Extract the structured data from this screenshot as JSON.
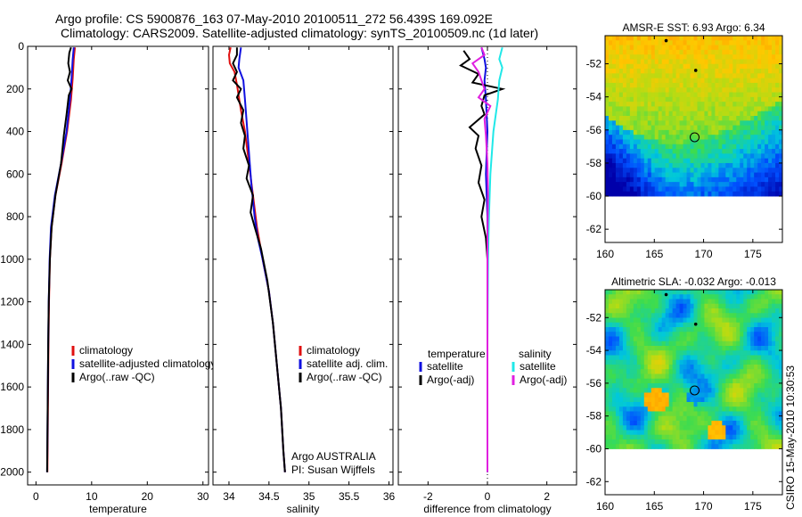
{
  "header": {
    "line1": "Argo profile: CS 5900876_163 07-May-2010 20100511_272 56.439S 169.092E",
    "line2": "Climatology: CARS2009. Satellite-adjusted climatology: synTS_20100509.nc (1d later)"
  },
  "side_label": "CSIRO 15-May-2010 10:30:53",
  "colors": {
    "red": "#e01010",
    "blue": "#1010e0",
    "black": "#000000",
    "cyan": "#20e8e8",
    "magenta": "#e020e0"
  },
  "chart_data": [
    {
      "id": "temperature",
      "type": "line",
      "xlabel": "temperature",
      "xlim": [
        -1.5,
        31
      ],
      "xticks": [
        0,
        10,
        20,
        30
      ],
      "ylim": [
        2060,
        0
      ],
      "yticks": [
        0,
        200,
        400,
        600,
        800,
        1000,
        1200,
        1400,
        1600,
        1800,
        2000
      ],
      "legend": [
        "climatology",
        "satellite-adjusted climatology",
        "Argo(..raw -QC)"
      ],
      "legend_placement": "lower-left",
      "series": [
        {
          "name": "climatology",
          "color": "red",
          "points": [
            [
              7,
              5
            ],
            [
              6.8,
              60
            ],
            [
              6.6,
              150
            ],
            [
              6.3,
              250
            ],
            [
              5.6,
              400
            ],
            [
              4.6,
              550
            ],
            [
              3.5,
              700
            ],
            [
              2.8,
              850
            ],
            [
              2.5,
              1000
            ],
            [
              2.35,
              1200
            ],
            [
              2.25,
              1400
            ],
            [
              2.15,
              1700
            ],
            [
              2.05,
              2000
            ]
          ]
        },
        {
          "name": "satellite-adjusted climatology",
          "color": "blue",
          "points": [
            [
              6.8,
              5
            ],
            [
              6.6,
              60
            ],
            [
              6.4,
              150
            ],
            [
              6.1,
              250
            ],
            [
              5.5,
              400
            ],
            [
              4.5,
              550
            ],
            [
              3.4,
              700
            ],
            [
              2.7,
              850
            ],
            [
              2.45,
              1000
            ],
            [
              2.3,
              1200
            ],
            [
              2.2,
              1400
            ],
            [
              2.1,
              1700
            ],
            [
              2.0,
              2000
            ]
          ]
        },
        {
          "name": "Argo(..raw -QC)",
          "color": "black",
          "points": [
            [
              6.3,
              5
            ],
            [
              6.0,
              30
            ],
            [
              5.8,
              80
            ],
            [
              6.1,
              120
            ],
            [
              5.7,
              160
            ],
            [
              6.4,
              200
            ],
            [
              5.9,
              230
            ],
            [
              5.5,
              320
            ],
            [
              5.0,
              420
            ],
            [
              4.5,
              550
            ],
            [
              3.5,
              700
            ],
            [
              2.8,
              850
            ],
            [
              2.5,
              1000
            ],
            [
              2.3,
              1200
            ],
            [
              2.2,
              1400
            ],
            [
              2.1,
              1700
            ],
            [
              2.0,
              2000
            ]
          ]
        }
      ]
    },
    {
      "id": "salinity",
      "type": "line",
      "xlabel": "salinity",
      "xlim": [
        33.8,
        36.05
      ],
      "xticks": [
        34,
        34.5,
        35,
        35.5,
        36
      ],
      "ylim": [
        2060,
        0
      ],
      "legend": [
        "climatology",
        "satellite adj. clim.",
        "Argo(..raw -QC)"
      ],
      "legend_placement": "lower-left",
      "annotations": [
        "Argo AUSTRALIA",
        "PI: Susan Wijffels"
      ],
      "series": [
        {
          "name": "climatology",
          "color": "red",
          "points": [
            [
              34.02,
              5
            ],
            [
              34.0,
              40
            ],
            [
              34.01,
              80
            ],
            [
              34.07,
              120
            ],
            [
              34.1,
              180
            ],
            [
              34.15,
              300
            ],
            [
              34.2,
              400
            ],
            [
              34.25,
              550
            ],
            [
              34.3,
              700
            ],
            [
              34.35,
              850
            ],
            [
              34.42,
              1000
            ],
            [
              34.5,
              1150
            ],
            [
              34.55,
              1300
            ],
            [
              34.6,
              1500
            ],
            [
              34.65,
              1700
            ],
            [
              34.68,
              1900
            ],
            [
              34.7,
              2000
            ]
          ]
        },
        {
          "name": "satellite adj. clim.",
          "color": "blue",
          "points": [
            [
              34.15,
              5
            ],
            [
              34.13,
              60
            ],
            [
              34.12,
              100
            ],
            [
              34.18,
              160
            ],
            [
              34.2,
              250
            ],
            [
              34.22,
              350
            ],
            [
              34.25,
              500
            ],
            [
              34.28,
              650
            ],
            [
              34.32,
              800
            ],
            [
              34.36,
              900
            ],
            [
              34.42,
              1000
            ],
            [
              34.5,
              1150
            ],
            [
              34.55,
              1300
            ],
            [
              34.6,
              1500
            ],
            [
              34.65,
              1700
            ],
            [
              34.68,
              1900
            ],
            [
              34.7,
              2000
            ]
          ]
        },
        {
          "name": "Argo(..raw -QC)",
          "color": "black",
          "points": [
            [
              34.1,
              5
            ],
            [
              34.1,
              40
            ],
            [
              34.05,
              80
            ],
            [
              34.1,
              120
            ],
            [
              34.05,
              160
            ],
            [
              34.15,
              200
            ],
            [
              34.1,
              240
            ],
            [
              34.18,
              300
            ],
            [
              34.15,
              360
            ],
            [
              34.2,
              420
            ],
            [
              34.18,
              480
            ],
            [
              34.25,
              560
            ],
            [
              34.22,
              620
            ],
            [
              34.3,
              700
            ],
            [
              34.27,
              780
            ],
            [
              34.33,
              860
            ],
            [
              34.4,
              950
            ],
            [
              34.48,
              1100
            ],
            [
              34.55,
              1300
            ],
            [
              34.6,
              1500
            ],
            [
              34.65,
              1700
            ],
            [
              34.68,
              1900
            ],
            [
              34.7,
              2000
            ]
          ]
        }
      ]
    },
    {
      "id": "difference",
      "type": "line",
      "xlabel": "difference from climatology",
      "xlim": [
        -3,
        3
      ],
      "xticks": [
        -2,
        0,
        2
      ],
      "ylim": [
        2060,
        0
      ],
      "legend_groups": [
        {
          "header": "temperature",
          "entries": [
            "satellite",
            "Argo(-adj)"
          ]
        },
        {
          "header": "salinity",
          "entries": [
            "satellite",
            "Argo(-adj)"
          ]
        }
      ],
      "legend_placement": "lower",
      "series": [
        {
          "name": "temperature satellite",
          "color": "blue",
          "points": [
            [
              -0.2,
              5
            ],
            [
              -0.1,
              60
            ],
            [
              -0.05,
              100
            ],
            [
              -0.1,
              160
            ],
            [
              -0.05,
              250
            ],
            [
              0,
              400
            ],
            [
              -0.05,
              600
            ],
            [
              0,
              800
            ],
            [
              0,
              1000
            ],
            [
              0,
              1400
            ],
            [
              0,
              2000
            ]
          ]
        },
        {
          "name": "temperature Argo(-adj)",
          "color": "black",
          "points": [
            [
              -0.8,
              20
            ],
            [
              -0.6,
              60
            ],
            [
              -0.9,
              90
            ],
            [
              -0.3,
              130
            ],
            [
              -0.5,
              170
            ],
            [
              0.5,
              200
            ],
            [
              -0.1,
              230
            ],
            [
              -0.2,
              280
            ],
            [
              -0.1,
              320
            ],
            [
              -0.6,
              380
            ],
            [
              -0.3,
              420
            ],
            [
              -0.4,
              480
            ],
            [
              -0.2,
              560
            ],
            [
              -0.3,
              640
            ],
            [
              -0.1,
              720
            ],
            [
              -0.2,
              800
            ],
            [
              -0.05,
              900
            ],
            [
              0,
              1000
            ],
            [
              0,
              1400
            ],
            [
              0,
              2000
            ]
          ]
        },
        {
          "name": "salinity satellite",
          "color": "cyan",
          "points": [
            [
              0.5,
              5
            ],
            [
              0.4,
              60
            ],
            [
              0.5,
              100
            ],
            [
              0.4,
              160
            ],
            [
              0.35,
              250
            ],
            [
              0.2,
              400
            ],
            [
              0.1,
              600
            ],
            [
              0.05,
              800
            ],
            [
              0.02,
              1000
            ],
            [
              0,
              1400
            ],
            [
              0,
              2000
            ]
          ]
        },
        {
          "name": "salinity Argo(-adj)",
          "color": "magenta",
          "points": [
            [
              -0.2,
              5
            ],
            [
              -0.1,
              40
            ],
            [
              -0.5,
              80
            ],
            [
              -0.3,
              120
            ],
            [
              -0.2,
              160
            ],
            [
              -0.1,
              200
            ],
            [
              -0.3,
              240
            ],
            [
              0.1,
              280
            ],
            [
              -0.1,
              340
            ],
            [
              -0.05,
              420
            ],
            [
              0,
              550
            ],
            [
              0.02,
              700
            ],
            [
              0,
              900
            ],
            [
              0,
              1400
            ],
            [
              0,
              2000
            ]
          ]
        }
      ]
    },
    {
      "id": "sst_map",
      "type": "heatmap",
      "title": "AMSR-E SST: 6.93 Argo: 6.34",
      "xlim": [
        160,
        178
      ],
      "xticks": [
        160,
        165,
        170,
        175
      ],
      "ylim": [
        -62.8,
        -50.3
      ],
      "yticks": [
        -52,
        -54,
        -56,
        -58,
        -60,
        -62
      ],
      "data_lat_range": [
        -60,
        -50.3
      ],
      "argo_position": [
        169.09,
        -56.44
      ],
      "value_range_degC": [
        2,
        11
      ],
      "track_points": [
        [
          166.2,
          -50.6
        ],
        [
          169.2,
          -52.4
        ]
      ]
    },
    {
      "id": "sla_map",
      "type": "heatmap",
      "title": "Altimetric SLA: -0.032 Argo: -0.013",
      "xlim": [
        160,
        178
      ],
      "xticks": [
        160,
        165,
        170,
        175
      ],
      "ylim": [
        -62.8,
        -50.3
      ],
      "yticks": [
        -52,
        -54,
        -56,
        -58,
        -60,
        -62
      ],
      "data_lat_range": [
        -60,
        -50.3
      ],
      "argo_position": [
        169.09,
        -56.44
      ],
      "value_range_m": [
        -0.3,
        0.3
      ],
      "track_points": [
        [
          166.2,
          -50.6
        ],
        [
          169.2,
          -52.4
        ]
      ]
    }
  ]
}
